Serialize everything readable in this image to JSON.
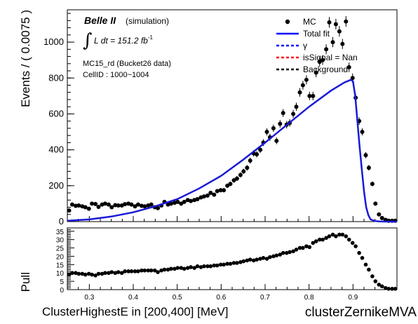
{
  "header": {
    "experiment": "Belle II",
    "sim": "(simulation)",
    "lumi_integral": "∫",
    "lumi_text": "L dt = 151.2 fb",
    "lumi_sup": "-1",
    "sample": "MC15_rd (Bucket26 data)",
    "cell": "CellID : 1000~1004"
  },
  "legend": [
    {
      "label": "MC",
      "style": "points",
      "color": "#000000"
    },
    {
      "label": "Total fit",
      "style": "solid",
      "color": "#0000ff"
    },
    {
      "label": "γ",
      "style": "dashed",
      "color": "#0000ff"
    },
    {
      "label": "isSignal = Nan",
      "style": "dashed",
      "color": "#ff0000"
    },
    {
      "label": "Background",
      "style": "dashed",
      "color": "#000000"
    }
  ],
  "colors": {
    "fit": "#1a1ad6",
    "points": "#000000"
  },
  "chart_data": [
    {
      "type": "scatter",
      "ylabel": "Events / ( 0.0075 )",
      "xlim": [
        0.25,
        1.0
      ],
      "ylim": [
        0,
        1180
      ],
      "yticks": [
        0,
        200,
        400,
        600,
        800,
        1000
      ],
      "ytick_labels": [
        "0",
        "200",
        "400",
        "600",
        "800",
        "1000"
      ],
      "series": [
        {
          "name": "MC",
          "x": [
            0.254,
            0.261,
            0.269,
            0.276,
            0.284,
            0.291,
            0.299,
            0.306,
            0.314,
            0.321,
            0.329,
            0.336,
            0.344,
            0.351,
            0.359,
            0.366,
            0.374,
            0.381,
            0.389,
            0.396,
            0.404,
            0.411,
            0.419,
            0.426,
            0.434,
            0.441,
            0.449,
            0.456,
            0.464,
            0.471,
            0.479,
            0.486,
            0.494,
            0.501,
            0.509,
            0.516,
            0.524,
            0.531,
            0.539,
            0.546,
            0.554,
            0.561,
            0.569,
            0.576,
            0.584,
            0.591,
            0.599,
            0.606,
            0.614,
            0.621,
            0.629,
            0.636,
            0.644,
            0.651,
            0.659,
            0.666,
            0.674,
            0.681,
            0.689,
            0.696,
            0.704,
            0.711,
            0.719,
            0.726,
            0.734,
            0.741,
            0.749,
            0.756,
            0.764,
            0.771,
            0.779,
            0.786,
            0.794,
            0.801,
            0.809,
            0.816,
            0.824,
            0.831,
            0.839,
            0.846,
            0.854,
            0.861,
            0.869,
            0.876,
            0.884,
            0.891,
            0.899,
            0.906,
            0.914,
            0.921,
            0.929,
            0.936,
            0.944,
            0.951,
            0.959,
            0.966,
            0.974,
            0.981,
            0.989,
            0.996
          ],
          "y": [
            62,
            95,
            88,
            90,
            85,
            80,
            72,
            100,
            98,
            82,
            95,
            100,
            95,
            80,
            92,
            90,
            90,
            97,
            100,
            95,
            85,
            95,
            88,
            85,
            90,
            95,
            80,
            75,
            90,
            110,
            95,
            100,
            105,
            110,
            100,
            110,
            120,
            115,
            120,
            125,
            135,
            140,
            145,
            160,
            150,
            170,
            175,
            175,
            200,
            210,
            230,
            240,
            260,
            280,
            300,
            340,
            380,
            375,
            400,
            440,
            500,
            470,
            520,
            450,
            545,
            605,
            540,
            550,
            600,
            640,
            720,
            760,
            790,
            700,
            700,
            830,
            890,
            900,
            960,
            1110,
            1000,
            1100,
            1060,
            990,
            1115,
            860,
            800,
            690,
            560,
            500,
            370,
            300,
            210,
            100,
            40,
            20,
            10,
            5,
            5,
            5
          ]
        },
        {
          "name": "Total fit",
          "x": [
            0.25,
            0.3,
            0.35,
            0.4,
            0.45,
            0.5,
            0.55,
            0.6,
            0.65,
            0.7,
            0.75,
            0.8,
            0.85,
            0.88,
            0.895,
            0.9,
            0.905,
            0.91,
            0.915,
            0.92,
            0.925,
            0.93,
            0.935,
            0.94,
            0.95,
            0.96,
            0.98,
            1.0
          ],
          "y": [
            5,
            12,
            28,
            52,
            85,
            125,
            185,
            255,
            345,
            440,
            540,
            640,
            730,
            775,
            790,
            782,
            700,
            560,
            420,
            290,
            170,
            80,
            35,
            12,
            3,
            1,
            0,
            0
          ]
        }
      ]
    },
    {
      "type": "scatter",
      "ylabel": "Pull",
      "xlabel": "ClusterHighestE in [200,400] [MeV]",
      "xlim": [
        0.25,
        1.0
      ],
      "ylim": [
        0,
        37
      ],
      "yticks": [
        0,
        5,
        10,
        15,
        20,
        25,
        30,
        35
      ],
      "ytick_labels": [
        "0",
        "5",
        "10",
        "15",
        "20",
        "25",
        "30",
        "35"
      ],
      "xticks": [
        0.3,
        0.4,
        0.5,
        0.6,
        0.7,
        0.8,
        0.9,
        1.0
      ],
      "xtick_labels": [
        "0.3",
        "0.4",
        "0.5",
        "0.6",
        "0.7",
        "0.8",
        "0.9",
        ""
      ],
      "series": [
        {
          "name": "Pull",
          "x": [
            0.254,
            0.261,
            0.269,
            0.276,
            0.284,
            0.291,
            0.299,
            0.306,
            0.314,
            0.321,
            0.329,
            0.336,
            0.344,
            0.351,
            0.359,
            0.366,
            0.374,
            0.381,
            0.389,
            0.396,
            0.404,
            0.411,
            0.419,
            0.426,
            0.434,
            0.441,
            0.449,
            0.456,
            0.464,
            0.471,
            0.479,
            0.486,
            0.494,
            0.501,
            0.509,
            0.516,
            0.524,
            0.531,
            0.539,
            0.546,
            0.554,
            0.561,
            0.569,
            0.576,
            0.584,
            0.591,
            0.599,
            0.606,
            0.614,
            0.621,
            0.629,
            0.636,
            0.644,
            0.651,
            0.659,
            0.666,
            0.674,
            0.681,
            0.689,
            0.696,
            0.704,
            0.711,
            0.719,
            0.726,
            0.734,
            0.741,
            0.749,
            0.756,
            0.764,
            0.771,
            0.779,
            0.786,
            0.794,
            0.801,
            0.809,
            0.816,
            0.824,
            0.831,
            0.839,
            0.846,
            0.854,
            0.861,
            0.869,
            0.876,
            0.884,
            0.891,
            0.899,
            0.906,
            0.914,
            0.921,
            0.929,
            0.936,
            0.944,
            0.951,
            0.959,
            0.966,
            0.974,
            0.981,
            0.989,
            0.996
          ],
          "y": [
            9,
            10,
            10,
            9.5,
            9.5,
            9,
            9.5,
            9,
            8.5,
            9.5,
            9.5,
            10,
            10,
            10.5,
            10,
            10.5,
            10,
            11,
            11,
            11,
            11,
            11,
            11.5,
            11.5,
            11.5,
            11.5,
            11.5,
            10.5,
            11.5,
            12,
            12,
            12.5,
            12.5,
            13,
            13,
            12.5,
            13,
            13.5,
            13,
            14,
            13.5,
            14,
            14,
            14,
            14.5,
            14.5,
            15,
            15,
            15.5,
            15.5,
            16,
            16,
            16.5,
            17,
            17.5,
            18,
            17.5,
            18,
            18.5,
            19,
            18.5,
            19.5,
            20,
            20.5,
            21,
            22,
            22,
            22.5,
            23,
            24,
            25,
            25,
            26,
            25.5,
            28,
            29,
            30,
            30,
            31,
            32,
            33,
            32,
            33,
            33,
            32,
            30,
            28,
            26,
            22,
            19,
            15,
            12,
            8,
            5,
            3,
            2,
            1,
            0.5,
            0.5,
            0.5
          ]
        }
      ]
    }
  ],
  "footer": {
    "variable": "clusterZernikeMVA"
  }
}
